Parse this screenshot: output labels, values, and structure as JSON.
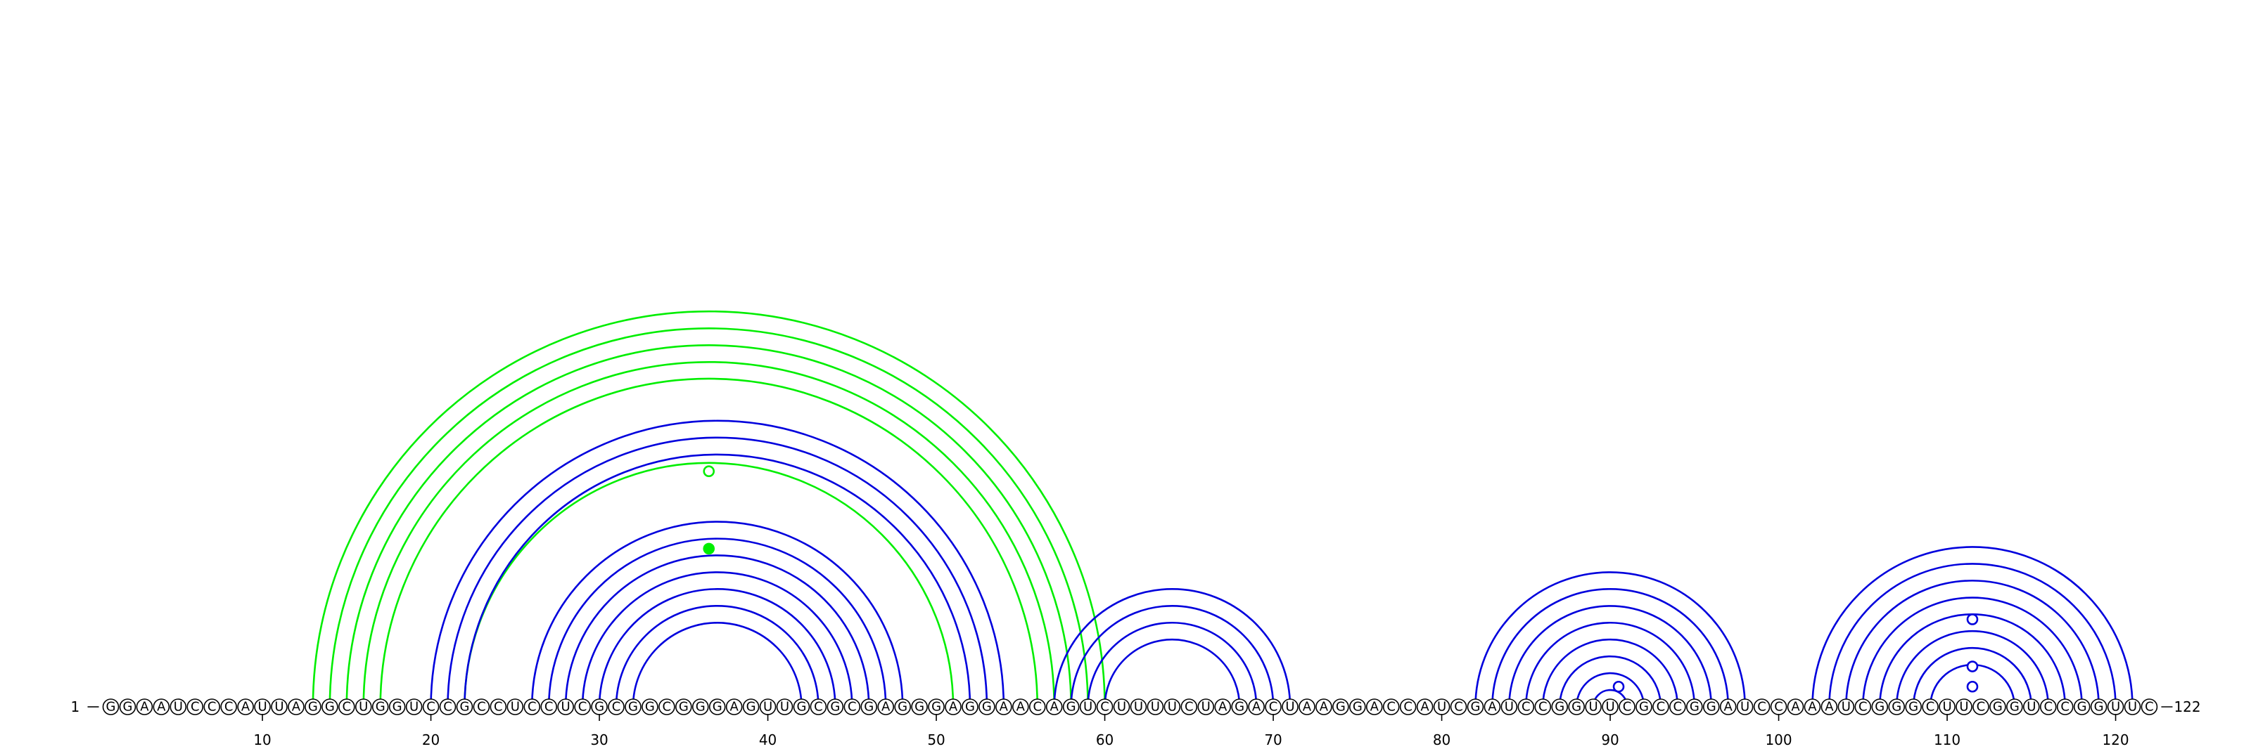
{
  "sequence": "GGAAUCCCAUUAGGCUGGUCCGCCUCCUCGCGGCGGGAGUUGCGCGAGGGAGGAACAGUCUUUUCUAGACUAAGGACCAUCGAUCCGGUUCGCCGGAUCCAAAUCGGGCUUCGGUCCGGUUC",
  "start_label": "1",
  "end_label": "122",
  "axis_ticks": [
    10,
    20,
    30,
    40,
    50,
    60,
    70,
    80,
    90,
    100,
    110,
    120
  ],
  "colors": {
    "blue": "#0000dd",
    "green": "#00ee00"
  },
  "chart_data": {
    "type": "arc-diagram",
    "length": 122,
    "pairs": [
      {
        "color": "green",
        "i": 13,
        "j": 60
      },
      {
        "color": "green",
        "i": 14,
        "j": 59
      },
      {
        "color": "green",
        "i": 15,
        "j": 58
      },
      {
        "color": "green",
        "i": 16,
        "j": 57
      },
      {
        "color": "green",
        "i": 17,
        "j": 56
      },
      {
        "color": "green",
        "i": 22,
        "j": 51
      },
      {
        "color": "blue",
        "i": 20,
        "j": 54
      },
      {
        "color": "blue",
        "i": 21,
        "j": 53
      },
      {
        "color": "blue",
        "i": 22,
        "j": 52
      },
      {
        "color": "blue",
        "i": 26,
        "j": 48
      },
      {
        "color": "blue",
        "i": 27,
        "j": 47
      },
      {
        "color": "blue",
        "i": 28,
        "j": 46
      },
      {
        "color": "blue",
        "i": 29,
        "j": 45
      },
      {
        "color": "blue",
        "i": 30,
        "j": 44
      },
      {
        "color": "blue",
        "i": 31,
        "j": 43
      },
      {
        "color": "blue",
        "i": 32,
        "j": 42
      },
      {
        "color": "blue",
        "i": 57,
        "j": 71
      },
      {
        "color": "blue",
        "i": 58,
        "j": 70
      },
      {
        "color": "blue",
        "i": 59,
        "j": 69
      },
      {
        "color": "blue",
        "i": 60,
        "j": 68
      },
      {
        "color": "blue",
        "i": 82,
        "j": 98
      },
      {
        "color": "blue",
        "i": 83,
        "j": 97
      },
      {
        "color": "blue",
        "i": 84,
        "j": 96
      },
      {
        "color": "blue",
        "i": 85,
        "j": 95
      },
      {
        "color": "blue",
        "i": 86,
        "j": 94
      },
      {
        "color": "blue",
        "i": 87,
        "j": 93
      },
      {
        "color": "blue",
        "i": 88,
        "j": 92
      },
      {
        "color": "blue",
        "i": 89,
        "j": 91
      },
      {
        "color": "blue",
        "i": 102,
        "j": 121
      },
      {
        "color": "blue",
        "i": 103,
        "j": 120
      },
      {
        "color": "blue",
        "i": 104,
        "j": 119
      },
      {
        "color": "blue",
        "i": 105,
        "j": 118
      },
      {
        "color": "blue",
        "i": 106,
        "j": 117
      },
      {
        "color": "blue",
        "i": 107,
        "j": 116
      },
      {
        "color": "blue",
        "i": 108,
        "j": 115
      },
      {
        "color": "blue",
        "i": 109,
        "j": 114
      }
    ],
    "markers": [
      {
        "x": 36.5,
        "y": 7.0,
        "fill": "open",
        "color": "green"
      },
      {
        "x": 36.5,
        "y": 4.7,
        "fill": "filled",
        "color": "green"
      },
      {
        "x": 90.5,
        "y": 0.6,
        "fill": "open",
        "color": "blue"
      },
      {
        "x": 111.5,
        "y": 2.6,
        "fill": "open",
        "color": "blue"
      },
      {
        "x": 111.5,
        "y": 1.2,
        "fill": "open",
        "color": "blue"
      },
      {
        "x": 111.5,
        "y": 0.6,
        "fill": "open",
        "color": "blue"
      }
    ]
  }
}
